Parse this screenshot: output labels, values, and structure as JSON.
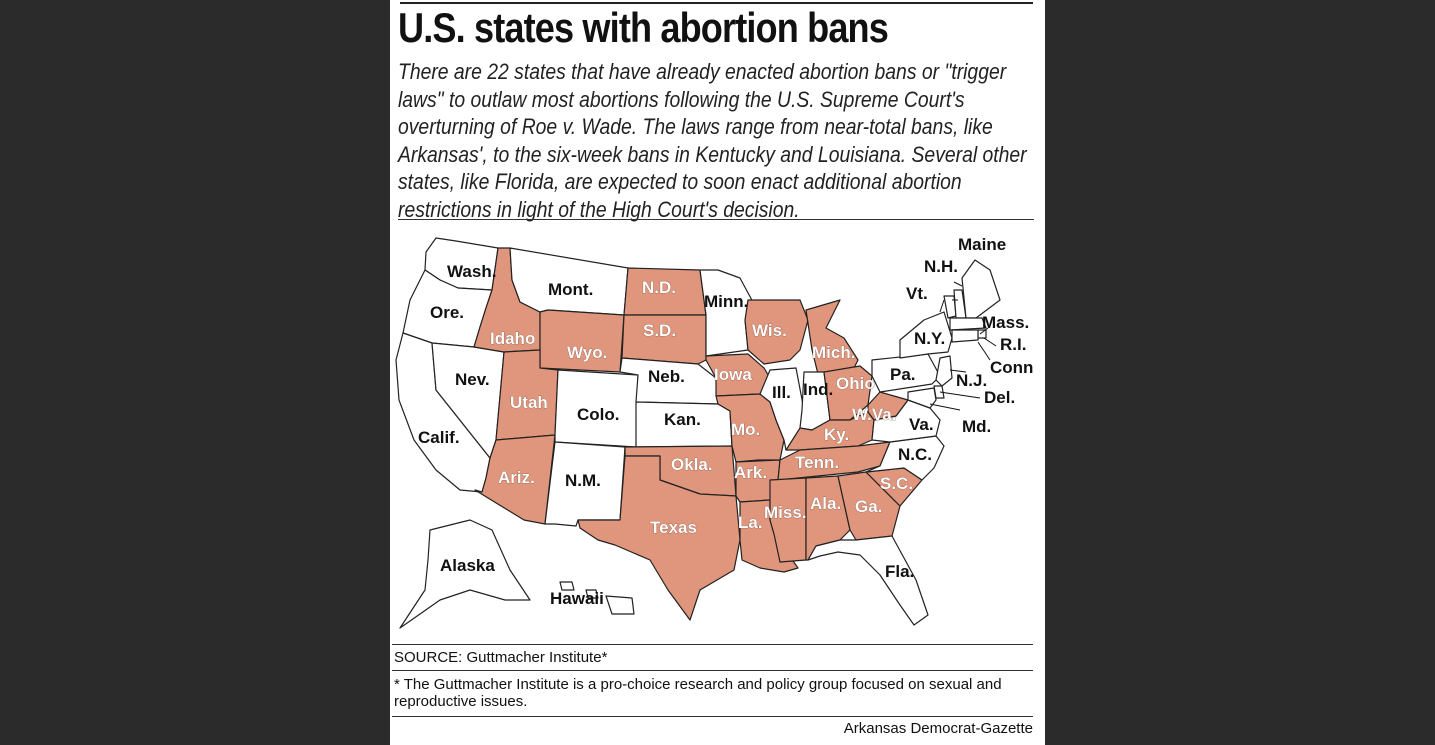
{
  "title": "U.S. states with abortion bans",
  "description": "There are 22 states that have already enacted abortion bans or \"trigger laws\" to outlaw most abortions following the U.S. Supreme Court's overturning of Roe v. Wade. The laws range from near-total bans, like Arkansas', to the six-week bans in Kentucky and Louisiana. Several other states, like Florida, are expected to soon enact additional abortion restrictions in light of the High Court's decision.",
  "colors": {
    "ban": "#e0967c",
    "no_ban": "#ffffff",
    "border": "#222222"
  },
  "map": {
    "states": [
      {
        "label": "Wash.",
        "ban": false
      },
      {
        "label": "Ore.",
        "ban": false
      },
      {
        "label": "Calif.",
        "ban": false
      },
      {
        "label": "Nev.",
        "ban": false
      },
      {
        "label": "Idaho",
        "ban": true
      },
      {
        "label": "Mont.",
        "ban": false
      },
      {
        "label": "Wyo.",
        "ban": true
      },
      {
        "label": "Utah",
        "ban": true
      },
      {
        "label": "Ariz.",
        "ban": true
      },
      {
        "label": "Colo.",
        "ban": false
      },
      {
        "label": "N.M.",
        "ban": false
      },
      {
        "label": "N.D.",
        "ban": true
      },
      {
        "label": "S.D.",
        "ban": true
      },
      {
        "label": "Neb.",
        "ban": false
      },
      {
        "label": "Kan.",
        "ban": false
      },
      {
        "label": "Okla.",
        "ban": true
      },
      {
        "label": "Texas",
        "ban": true
      },
      {
        "label": "Minn.",
        "ban": false
      },
      {
        "label": "Iowa",
        "ban": true
      },
      {
        "label": "Mo.",
        "ban": true
      },
      {
        "label": "Ark.",
        "ban": true
      },
      {
        "label": "La.",
        "ban": true
      },
      {
        "label": "Wis.",
        "ban": true
      },
      {
        "label": "Ill.",
        "ban": false
      },
      {
        "label": "Mich.",
        "ban": true
      },
      {
        "label": "Ind.",
        "ban": false
      },
      {
        "label": "Ohio",
        "ban": true
      },
      {
        "label": "Ky.",
        "ban": true
      },
      {
        "label": "Tenn.",
        "ban": true
      },
      {
        "label": "Miss.",
        "ban": true
      },
      {
        "label": "Ala.",
        "ban": true
      },
      {
        "label": "Ga.",
        "ban": true
      },
      {
        "label": "Fla.",
        "ban": false
      },
      {
        "label": "S.C.",
        "ban": true
      },
      {
        "label": "N.C.",
        "ban": false
      },
      {
        "label": "Va.",
        "ban": false
      },
      {
        "label": "W.Va.",
        "ban": true
      },
      {
        "label": "Pa.",
        "ban": false
      },
      {
        "label": "N.Y.",
        "ban": false
      },
      {
        "label": "Vt.",
        "ban": false
      },
      {
        "label": "N.H.",
        "ban": false
      },
      {
        "label": "Maine",
        "ban": false
      },
      {
        "label": "Mass.",
        "ban": false
      },
      {
        "label": "R.I.",
        "ban": false
      },
      {
        "label": "Conn.",
        "ban": false
      },
      {
        "label": "N.J.",
        "ban": false
      },
      {
        "label": "Del.",
        "ban": false
      },
      {
        "label": "Md.",
        "ban": false
      },
      {
        "label": "Alaska",
        "ban": false
      },
      {
        "label": "Hawaii",
        "ban": false
      }
    ]
  },
  "source": "SOURCE: Guttmacher Institute*",
  "footnote": "* The Guttmacher Institute is a pro-choice research and policy group focused on sexual and reproductive issues.",
  "credit": "Arkansas Democrat-Gazette"
}
